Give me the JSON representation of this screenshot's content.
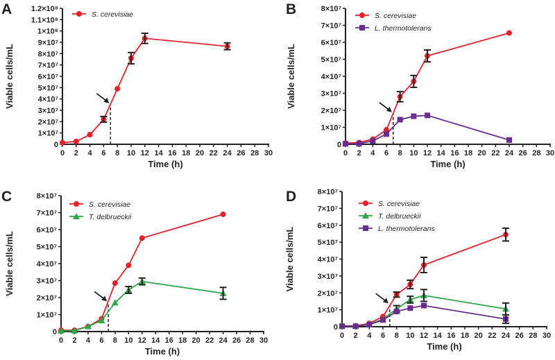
{
  "chart_data": [
    {
      "panel": "A",
      "type": "line",
      "xlabel": "Time (h)",
      "ylabel": "Viable cells/mL",
      "xlim": [
        0,
        30
      ],
      "xticks": [
        0,
        2,
        4,
        6,
        8,
        10,
        12,
        14,
        16,
        18,
        20,
        22,
        24,
        26,
        28,
        30
      ],
      "ylim": [
        0,
        120000000
      ],
      "yticks": [
        0,
        10000000,
        20000000,
        30000000,
        40000000,
        50000000,
        60000000,
        70000000,
        80000000,
        90000000,
        100000000,
        110000000,
        120000000
      ],
      "ytick_labels": [
        "0",
        "1×10⁷",
        "2×10⁷",
        "3×10⁷",
        "4×10⁷",
        "5×10⁷",
        "6×10⁷",
        "7×10⁷",
        "8×10⁷",
        "9×10⁷",
        "1×10⁸",
        "1.1×10⁸",
        "1.2×10⁸"
      ],
      "legend": "top-left",
      "marker_line": {
        "x": 7,
        "y": 35000000
      },
      "series": [
        {
          "name": "S. cerevisiae",
          "color": "#e8202a",
          "marker": "circle",
          "x": [
            0,
            2,
            4,
            6,
            8,
            10,
            12,
            24
          ],
          "y": [
            1500000,
            2500000,
            8500000,
            22000000,
            49000000,
            76000000,
            93500000,
            86500000
          ],
          "err": [
            0,
            0,
            0,
            2500000,
            0,
            5000000,
            4500000,
            3000000
          ]
        }
      ]
    },
    {
      "panel": "B",
      "type": "line",
      "xlabel": "Time (h)",
      "ylabel": "Viable cells/mL",
      "xlim": [
        0,
        30
      ],
      "xticks": [
        0,
        2,
        4,
        6,
        8,
        10,
        12,
        14,
        16,
        18,
        20,
        22,
        24,
        26,
        28,
        30
      ],
      "ylim": [
        0,
        80000000
      ],
      "yticks": [
        0,
        10000000,
        20000000,
        30000000,
        40000000,
        50000000,
        60000000,
        70000000,
        80000000
      ],
      "ytick_labels": [
        "0",
        "1×10⁷",
        "2×10⁷",
        "3×10⁷",
        "4×10⁷",
        "5×10⁷",
        "6×10⁷",
        "7×10⁷",
        "8×10⁷"
      ],
      "legend": "top-left",
      "marker_line": {
        "x": 7,
        "y": 18000000
      },
      "series": [
        {
          "name": "S. cerevisiae",
          "color": "#e8202a",
          "marker": "circle",
          "x": [
            0,
            2,
            4,
            6,
            8,
            10,
            12,
            24
          ],
          "y": [
            700000,
            1000000,
            3000000,
            8500000,
            28000000,
            37000000,
            52000000,
            65500000
          ],
          "err": [
            0,
            0,
            0,
            0,
            3000000,
            3500000,
            3500000,
            0
          ]
        },
        {
          "name": "L. thermotolerans",
          "color": "#6a2c91",
          "marker": "square",
          "x": [
            0,
            2,
            4,
            6,
            8,
            10,
            12,
            24
          ],
          "y": [
            300000,
            300000,
            2000000,
            6000000,
            14500000,
            16500000,
            17000000,
            2500000
          ],
          "err": [
            0,
            0,
            0,
            0,
            0,
            0,
            0,
            0
          ]
        }
      ]
    },
    {
      "panel": "C",
      "type": "line",
      "xlabel": "Time (h)",
      "ylabel": "Viable cells/mL",
      "xlim": [
        0,
        30
      ],
      "xticks": [
        0,
        2,
        4,
        6,
        8,
        10,
        12,
        14,
        16,
        18,
        20,
        22,
        24,
        26,
        28,
        30
      ],
      "ylim": [
        0,
        80000000
      ],
      "yticks": [
        0,
        10000000,
        20000000,
        30000000,
        40000000,
        50000000,
        60000000,
        70000000,
        80000000
      ],
      "ytick_labels": [
        "0",
        "1×10⁷",
        "2×10⁷",
        "3×10⁷",
        "4×10⁷",
        "5×10⁷",
        "6×10⁷",
        "7×10⁷",
        "8×10⁷"
      ],
      "legend": "top-left",
      "marker_line": {
        "x": 7,
        "y": 17000000
      },
      "series": [
        {
          "name": "S. cerevisiae",
          "color": "#e8202a",
          "marker": "circle",
          "x": [
            0,
            2,
            4,
            6,
            8,
            10,
            12,
            24
          ],
          "y": [
            800000,
            800000,
            3000000,
            7500000,
            28500000,
            39000000,
            55000000,
            69000000
          ],
          "err": [
            0,
            0,
            0,
            0,
            0,
            0,
            0,
            0
          ]
        },
        {
          "name": "T. delbrueckii",
          "color": "#2ca84a",
          "marker": "triangle",
          "x": [
            0,
            2,
            4,
            6,
            8,
            10,
            12,
            24
          ],
          "y": [
            500000,
            500000,
            3000000,
            6500000,
            17000000,
            24500000,
            29500000,
            22500000
          ],
          "err": [
            0,
            0,
            0,
            0,
            0,
            2000000,
            2000000,
            3500000
          ]
        }
      ]
    },
    {
      "panel": "D",
      "type": "line",
      "xlabel": "Time (h)",
      "ylabel": "Viable cells/mL",
      "xlim": [
        0,
        30
      ],
      "xticks": [
        0,
        2,
        4,
        6,
        8,
        10,
        12,
        14,
        16,
        18,
        20,
        22,
        24,
        26,
        28,
        30
      ],
      "ylim": [
        0,
        80000000
      ],
      "yticks": [
        0,
        10000000,
        20000000,
        30000000,
        40000000,
        50000000,
        60000000,
        70000000,
        80000000
      ],
      "ytick_labels": [
        "0",
        "1×10⁷",
        "2×10⁷",
        "3×10⁷",
        "4×10⁷",
        "5×10⁷",
        "6×10⁷",
        "7×10⁷",
        "8×10⁷"
      ],
      "legend": "top-left",
      "marker_line": {
        "x": 7,
        "y": 13000000
      },
      "series": [
        {
          "name": "S. cerevisiae",
          "color": "#e8202a",
          "marker": "circle",
          "x": [
            0,
            2,
            4,
            6,
            8,
            10,
            12,
            24
          ],
          "y": [
            500000,
            500000,
            2000000,
            6000000,
            19000000,
            25000000,
            36500000,
            54500000
          ],
          "err": [
            0,
            0,
            0,
            0,
            1500000,
            2500000,
            4500000,
            3800000
          ]
        },
        {
          "name": "T. delbrueckii",
          "color": "#2ca84a",
          "marker": "triangle",
          "x": [
            0,
            2,
            4,
            6,
            8,
            10,
            12,
            24
          ],
          "y": [
            300000,
            300000,
            1500000,
            4500000,
            10500000,
            16000000,
            18500000,
            10500000
          ],
          "err": [
            0,
            0,
            0,
            0,
            2000000,
            2000000,
            3500000,
            3500000
          ]
        },
        {
          "name": "L. thermotolerans",
          "color": "#6a2c91",
          "marker": "square",
          "x": [
            0,
            2,
            4,
            6,
            8,
            10,
            12,
            24
          ],
          "y": [
            300000,
            300000,
            1200000,
            4000000,
            9000000,
            11000000,
            12500000,
            4500000
          ],
          "err": [
            0,
            0,
            0,
            0,
            0,
            0,
            0,
            2500000
          ]
        }
      ]
    }
  ]
}
